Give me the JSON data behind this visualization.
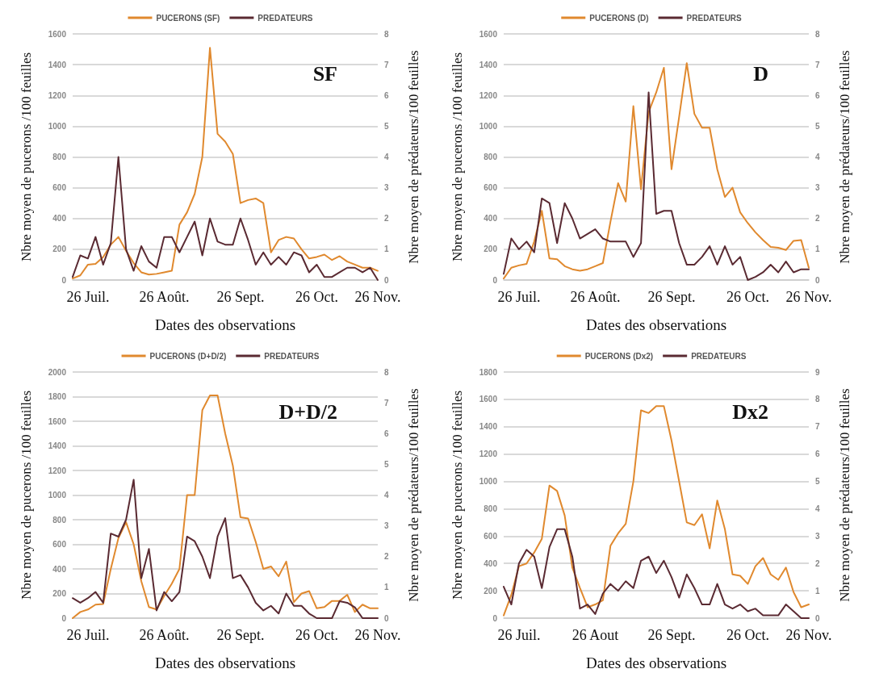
{
  "chart_data": [
    {
      "type": "line",
      "annotations": [
        "SF"
      ],
      "xlabel": "Dates des observations",
      "ylabel": "Nbre moyen de pucerons /100 feuilles",
      "y2label": "Nbre moyen de prédateurs/100 feuilles",
      "categories": [
        null,
        null,
        "26 Juil.",
        null,
        null,
        null,
        null,
        null,
        null,
        null,
        null,
        null,
        "26 Août.",
        null,
        null,
        null,
        null,
        null,
        null,
        null,
        null,
        null,
        "26 Sept.",
        null,
        null,
        null,
        null,
        null,
        null,
        null,
        null,
        null,
        "26 Oct.",
        null,
        null,
        null,
        null,
        null,
        null,
        null,
        "26 Nov."
      ],
      "series": [
        {
          "name": "PUCERONS (SF)",
          "color": "#e0892e",
          "values": [
            10,
            30,
            100,
            105,
            150,
            230,
            280,
            190,
            110,
            50,
            35,
            40,
            50,
            60,
            360,
            440,
            560,
            800,
            1510,
            950,
            900,
            820,
            500,
            520,
            530,
            500,
            180,
            260,
            280,
            270,
            200,
            140,
            150,
            165,
            130,
            155,
            120,
            100,
            80,
            80,
            60
          ]
        },
        {
          "name": "PREDATEURS",
          "color": "#5a2a32",
          "axis": "y2",
          "values": [
            0.1,
            0.8,
            0.7,
            1.4,
            0.5,
            1.2,
            4.0,
            1.0,
            0.3,
            1.1,
            0.6,
            0.4,
            1.4,
            1.4,
            0.9,
            1.4,
            1.9,
            0.8,
            2.0,
            1.25,
            1.15,
            1.15,
            2.0,
            1.3,
            0.5,
            0.9,
            0.5,
            0.75,
            0.5,
            0.9,
            0.8,
            0.25,
            0.5,
            0.1,
            0.1,
            0.25,
            0.4,
            0.4,
            0.25,
            0.4,
            0
          ]
        }
      ],
      "ylim": [
        0,
        1600
      ],
      "yticks": [
        0,
        200,
        400,
        600,
        800,
        1000,
        1200,
        1400,
        1600
      ],
      "y2lim": [
        0,
        8
      ],
      "y2ticks": [
        0,
        1,
        2,
        3,
        4,
        5,
        6,
        7,
        8
      ],
      "grid": "y",
      "legend": "top",
      "marker": "none",
      "line_style": "solid"
    },
    {
      "type": "line",
      "annotations": [
        "D"
      ],
      "xlabel": "Dates des observations",
      "ylabel": "Nbre moyen de pucerons /100 feuilles",
      "y2label": "Nbre moyen de prédateurs/100 feuilles",
      "categories": [
        null,
        null,
        "26 Juil.",
        null,
        null,
        null,
        null,
        null,
        null,
        null,
        null,
        null,
        "26 Août.",
        null,
        null,
        null,
        null,
        null,
        null,
        null,
        null,
        null,
        "26 Sept.",
        null,
        null,
        null,
        null,
        null,
        null,
        null,
        null,
        null,
        "26 Oct.",
        null,
        null,
        null,
        null,
        null,
        null,
        null,
        "26 Nov."
      ],
      "series": [
        {
          "name": "PUCERONS (D)",
          "color": "#e0892e",
          "values": [
            10,
            80,
            95,
            105,
            250,
            450,
            140,
            135,
            90,
            70,
            60,
            70,
            90,
            110,
            380,
            630,
            510,
            1130,
            590,
            1090,
            1220,
            1380,
            720,
            1060,
            1410,
            1080,
            990,
            990,
            720,
            540,
            600,
            440,
            370,
            310,
            260,
            215,
            210,
            195,
            255,
            260,
            80
          ]
        },
        {
          "name": "PREDATEURS",
          "color": "#5a2a32",
          "axis": "y2",
          "values": [
            0.2,
            1.35,
            1.0,
            1.25,
            0.9,
            2.65,
            2.5,
            1.2,
            2.5,
            2.0,
            1.35,
            1.5,
            1.65,
            1.35,
            1.25,
            1.25,
            1.25,
            0.75,
            1.2,
            6.1,
            2.15,
            2.25,
            2.25,
            1.2,
            0.5,
            0.5,
            0.75,
            1.1,
            0.5,
            1.1,
            0.5,
            0.75,
            0,
            0.1,
            0.25,
            0.5,
            0.25,
            0.6,
            0.25,
            0.35,
            0.35
          ]
        }
      ],
      "ylim": [
        0,
        1600
      ],
      "yticks": [
        0,
        200,
        400,
        600,
        800,
        1000,
        1200,
        1400,
        1600
      ],
      "y2lim": [
        0,
        8
      ],
      "y2ticks": [
        0,
        1,
        2,
        3,
        4,
        5,
        6,
        7,
        8
      ],
      "grid": "y",
      "legend": "top",
      "marker": "none",
      "line_style": "solid"
    },
    {
      "type": "line",
      "annotations": [
        "D+D/2"
      ],
      "xlabel": "Dates des observations",
      "ylabel": "Nbre moyen de pucerons /100 feuilles",
      "y2label": "Nbre moyen de prédateurs/100 feuilles",
      "categories": [
        null,
        null,
        "26 Juil.",
        null,
        null,
        null,
        null,
        null,
        null,
        null,
        null,
        null,
        "26 Août.",
        null,
        null,
        null,
        null,
        null,
        null,
        null,
        null,
        null,
        "26 Sept.",
        null,
        null,
        null,
        null,
        null,
        null,
        null,
        null,
        null,
        "26 Oct.",
        null,
        null,
        null,
        null,
        null,
        null,
        null,
        "26 Nov."
      ],
      "series": [
        {
          "name": "PUCERONS (D+D/2)",
          "color": "#e0892e",
          "values": [
            0,
            50,
            70,
            110,
            115,
            400,
            650,
            780,
            600,
            300,
            90,
            70,
            180,
            280,
            400,
            1000,
            1000,
            1690,
            1810,
            1810,
            1500,
            1240,
            820,
            810,
            620,
            400,
            420,
            340,
            460,
            130,
            200,
            220,
            80,
            90,
            140,
            140,
            190,
            50,
            110,
            80,
            80
          ]
        },
        {
          "name": "PREDATEURS",
          "color": "#5a2a32",
          "axis": "y2",
          "values": [
            0.65,
            0.5,
            0.65,
            0.85,
            0.5,
            2.75,
            2.65,
            3.2,
            4.5,
            1.3,
            2.25,
            0.25,
            0.85,
            0.55,
            0.85,
            2.65,
            2.5,
            2.0,
            1.3,
            2.65,
            3.25,
            1.3,
            1.4,
            1.0,
            0.5,
            0.25,
            0.4,
            0.15,
            0.8,
            0.4,
            0.4,
            0.15,
            0,
            0,
            0,
            0.55,
            0.5,
            0.35,
            0,
            0,
            0
          ]
        }
      ],
      "ylim": [
        0,
        2000
      ],
      "yticks": [
        0,
        200,
        400,
        600,
        800,
        1000,
        1200,
        1400,
        1600,
        1800,
        2000
      ],
      "y2lim": [
        0,
        8
      ],
      "y2ticks": [
        0,
        1,
        2,
        3,
        4,
        5,
        6,
        7,
        8
      ],
      "grid": "y",
      "legend": "top",
      "marker": "none",
      "line_style": "solid"
    },
    {
      "type": "line",
      "annotations": [
        "Dx2"
      ],
      "xlabel": "Dates des observations",
      "ylabel": "Nbre moyen de pucerons /100 feuilles",
      "y2label": "Nbre moyen de prédateurs/100 feuilles",
      "categories": [
        null,
        null,
        "26 Juil.",
        null,
        null,
        null,
        null,
        null,
        null,
        null,
        null,
        null,
        "26 Aout",
        null,
        null,
        null,
        null,
        null,
        null,
        null,
        null,
        null,
        "26 Sept.",
        null,
        null,
        null,
        null,
        null,
        null,
        null,
        null,
        null,
        "26 Oct.",
        null,
        null,
        null,
        null,
        null,
        null,
        null,
        "26 Nov."
      ],
      "series": [
        {
          "name": "PUCERONS (Dx2)",
          "color": "#e0892e",
          "values": [
            20,
            170,
            380,
            400,
            480,
            580,
            970,
            930,
            750,
            370,
            220,
            80,
            100,
            130,
            530,
            620,
            690,
            1000,
            1520,
            1500,
            1550,
            1550,
            1300,
            1000,
            700,
            680,
            760,
            510,
            860,
            650,
            320,
            310,
            250,
            380,
            440,
            320,
            280,
            370,
            190,
            80,
            100
          ]
        },
        {
          "name": "PREDATEURS",
          "color": "#5a2a32",
          "axis": "y2",
          "values": [
            1.15,
            0.5,
            2.0,
            2.5,
            2.25,
            1.1,
            2.6,
            3.25,
            3.25,
            2.25,
            0.35,
            0.5,
            0.15,
            0.9,
            1.25,
            1.0,
            1.35,
            1.1,
            2.1,
            2.25,
            1.65,
            2.1,
            1.5,
            0.75,
            1.6,
            1.1,
            0.5,
            0.5,
            1.25,
            0.5,
            0.35,
            0.5,
            0.25,
            0.35,
            0.1,
            0.1,
            0.1,
            0.5,
            0.25,
            0,
            0
          ]
        }
      ],
      "ylim": [
        0,
        1800
      ],
      "yticks": [
        0,
        200,
        400,
        600,
        800,
        1000,
        1200,
        1400,
        1600,
        1800
      ],
      "y2lim": [
        0,
        9
      ],
      "y2ticks": [
        0,
        1,
        2,
        3,
        4,
        5,
        6,
        7,
        8,
        9
      ],
      "grid": "y",
      "legend": "top",
      "marker": "none",
      "line_style": "solid"
    }
  ]
}
